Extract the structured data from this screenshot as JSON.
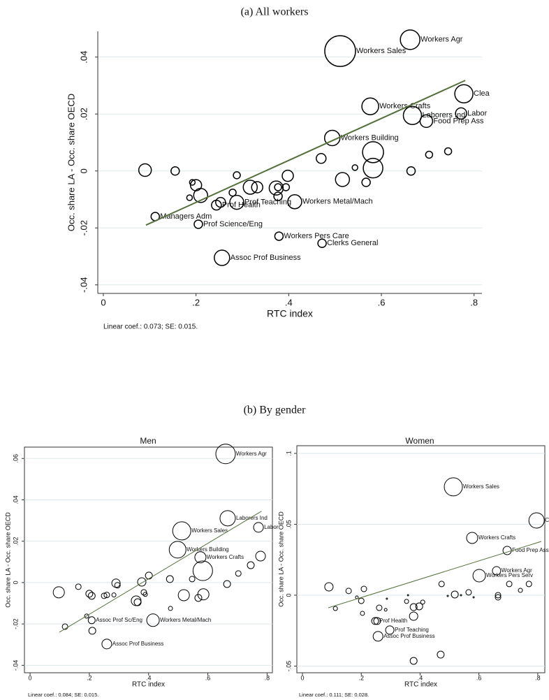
{
  "panel_a_caption": "(a) All workers",
  "panel_b_caption": "(b) By gender",
  "chart_data": [
    {
      "type": "scatter",
      "x_label": "RTC index",
      "y_label": "Occ. share LA - Occ. share OECD",
      "note": "Linear coef.: 0.073; SE: 0.015.",
      "grid": true,
      "color": "#000000",
      "fit_color": "#55703a",
      "xlim": [
        -0.012,
        0.817
      ],
      "ylim": [
        -0.043,
        0.049
      ],
      "xticks": [
        0,
        {
          "value": 0.2,
          "label": ".2"
        },
        {
          "value": 0.4,
          "label": ".4"
        },
        {
          "value": 0.6,
          "label": ".6"
        },
        {
          "value": 0.8,
          "label": ".8"
        }
      ],
      "yticks": [
        {
          "value": -0.04,
          "label": "-.04"
        },
        {
          "value": -0.02,
          "label": "-.02"
        },
        0,
        {
          "value": 0.02,
          "label": ".02"
        },
        {
          "value": 0.04,
          "label": ".04"
        }
      ],
      "x": [
        0.09,
        0.155,
        0.192,
        0.2,
        0.21,
        0.186,
        0.112,
        0.205,
        0.244,
        0.253,
        0.279,
        0.288,
        0.288,
        0.256,
        0.317,
        0.332,
        0.377,
        0.377,
        0.373,
        0.398,
        0.394,
        0.413,
        0.379,
        0.47,
        0.472,
        0.494,
        0.516,
        0.543,
        0.511,
        0.567,
        0.576,
        0.582,
        0.582,
        0.662,
        0.664,
        0.667,
        0.697,
        0.703,
        0.744,
        0.778,
        0.772
      ],
      "y": [
        0.0003,
        0,
        -0.004,
        -0.005,
        -0.0086,
        -0.0094,
        -0.016,
        -0.0187,
        -0.012,
        -0.011,
        -0.0076,
        -0.011,
        -0.0015,
        -0.0305,
        -0.0057,
        -0.0057,
        -0.0057,
        -0.0089,
        -0.006,
        -0.0017,
        -0.0057,
        -0.0108,
        -0.0229,
        0.0044,
        -0.0254,
        0.0116,
        -0.003,
        0.0012,
        0.0421,
        -0.004,
        0.0227,
        0.0066,
        0.001,
        0.0461,
        0,
        0.0195,
        0.0175,
        0.0057,
        0.0069,
        0.0271,
        0.0202
      ],
      "sizes": [
        9,
        6,
        4,
        8,
        10,
        4,
        6,
        6,
        7,
        7,
        5,
        10,
        5,
        11,
        10,
        8,
        5,
        6,
        10,
        8,
        5,
        10,
        6,
        7,
        6,
        11,
        10,
        4,
        22,
        6,
        12,
        15,
        14,
        14,
        6,
        13,
        9,
        5,
        5,
        13,
        8
      ],
      "labels": [
        null,
        null,
        null,
        null,
        null,
        null,
        "Managers Adm",
        "Prof Science/Eng",
        "Prof Health",
        null,
        null,
        "Prof Teaching",
        null,
        "Assoc Prof Business",
        null,
        null,
        null,
        null,
        null,
        null,
        null,
        "Workers Metal/Mach",
        "Workers Pers Care",
        null,
        "Clerks General",
        "Workers Building",
        null,
        null,
        "Workers Sales",
        null,
        "Workers Crafts",
        null,
        null,
        "Workers Agr",
        null,
        "Laborers Ind",
        "Food Prep Ass",
        null,
        null,
        "Clea",
        "Labor"
      ],
      "fit": {
        "x": [
          0.092,
          0.781
        ],
        "y": [
          -0.019,
          0.0318
        ]
      }
    },
    {
      "type": "scatter",
      "title": "Men",
      "x_label": "RTC index",
      "y_label": "Occ. share LA - Occ. share OECD",
      "note": "Linear coef.: 0.084; SE: 0.015.",
      "grid": true,
      "color": "#000000",
      "fit_color": "#55703a",
      "xlim": [
        -0.019,
        0.818
      ],
      "ylim": [
        -0.0436,
        0.0655
      ],
      "xticks": [
        0,
        {
          "value": 0.2,
          "label": ".2"
        },
        {
          "value": 0.4,
          "label": ".4"
        },
        {
          "value": 0.6,
          "label": ".6"
        },
        {
          "value": 0.8,
          "label": ".8"
        }
      ],
      "yticks": [
        {
          "value": -0.04,
          "label": "-.04"
        },
        {
          "value": -0.02,
          "label": "-.02"
        },
        0,
        {
          "value": 0.02,
          "label": ".02"
        },
        {
          "value": 0.04,
          "label": ".04"
        },
        {
          "value": 0.06,
          "label": ".06"
        }
      ],
      "x": [
        0.097,
        0.118,
        0.163,
        0.191,
        0.2,
        0.208,
        0.208,
        0.21,
        0.259,
        0.25,
        0.259,
        0.283,
        0.29,
        0.295,
        0.358,
        0.363,
        0.377,
        0.384,
        0.389,
        0.401,
        0.415,
        0.472,
        0.474,
        0.498,
        0.512,
        0.519,
        0.547,
        0.568,
        0.575,
        0.583,
        0.585,
        0.66,
        0.667,
        0.665,
        0.703,
        0.745,
        0.771,
        0.778
      ],
      "y": [
        -0.0047,
        -0.0213,
        -0.002,
        -0.0162,
        -0.0054,
        -0.0064,
        -0.0182,
        -0.0233,
        -0.0297,
        -0.0064,
        -0.006,
        -0.006,
        -0.0003,
        -0.0013,
        -0.0088,
        -0.0095,
        0.0003,
        -0.0047,
        -0.0057,
        0.0034,
        -0.0182,
        0.0017,
        -0.0125,
        0.0159,
        0.025,
        -0.0061,
        0.0017,
        -0.0074,
        0.0122,
        0.0057,
        -0.0057,
        0.0622,
        0.0311,
        -0.0007,
        0.0044,
        0.0084,
        0.0267,
        0.0128
      ],
      "sizes": [
        8,
        4,
        4,
        3,
        5,
        5,
        5,
        5,
        7,
        4,
        4,
        3,
        6,
        4,
        7,
        5,
        6,
        4,
        3,
        5,
        9,
        5,
        3,
        12,
        13,
        8,
        4,
        5,
        8,
        14,
        8,
        14,
        11,
        5,
        4,
        5,
        7,
        7
      ],
      "labels": [
        null,
        null,
        null,
        null,
        null,
        null,
        "Assoc Prof Sc/Eng",
        null,
        "Assoc Prof Business",
        null,
        null,
        null,
        null,
        null,
        null,
        null,
        null,
        null,
        null,
        null,
        "Workers Metal/Mach",
        null,
        null,
        "Workers Building",
        "Workers Sales",
        null,
        null,
        null,
        "Workers Crafts",
        null,
        null,
        "Workers Agr",
        "Laborers Ind",
        null,
        null,
        null,
        "Labor",
        null
      ],
      "fit": {
        "x": [
          0.099,
          0.781
        ],
        "y": [
          -0.024,
          0.0345
        ]
      }
    },
    {
      "type": "scatter",
      "title": "Women",
      "x_label": "RTC index",
      "y_label": "Occ. share LA - Occ. share OECD",
      "note": "Linear coef.: 0.111; SE: 0.028.",
      "grid": true,
      "color": "#000000",
      "fit_color": "#55703a",
      "xlim": [
        -0.019,
        0.824
      ],
      "ylim": [
        -0.0547,
        0.1054
      ],
      "xticks": [
        0,
        {
          "value": 0.2,
          "label": ".2"
        },
        {
          "value": 0.4,
          "label": ".4"
        },
        {
          "value": 0.6,
          "label": ".6"
        },
        {
          "value": 0.8,
          "label": ".8"
        }
      ],
      "yticks": [
        {
          "value": -0.05,
          "label": "-.05"
        },
        0,
        {
          "value": 0.05,
          "label": ".05"
        },
        {
          "value": 0.1,
          "label": ".1"
        }
      ],
      "x": [
        0.09,
        0.112,
        0.157,
        0.185,
        0.2,
        0.204,
        0.209,
        0.247,
        0.254,
        0.261,
        0.257,
        0.283,
        0.287,
        0.297,
        0.354,
        0.359,
        0.378,
        0.378,
        0.378,
        0.397,
        0.409,
        0.473,
        0.47,
        0.494,
        0.513,
        0.518,
        0.539,
        0.565,
        0.577,
        0.582,
        0.601,
        0.66,
        0.665,
        0.665,
        0.696,
        0.703,
        0.741,
        0.77,
        0.796
      ],
      "y": [
        0.0059,
        -0.0094,
        0.003,
        -0.0015,
        -0.004,
        -0.0128,
        0.0044,
        -0.0182,
        -0.0182,
        -0.0089,
        -0.029,
        -0.0103,
        -0.0025,
        -0.0246,
        -0.0044,
        0,
        -0.0084,
        -0.0148,
        -0.0463,
        -0.0079,
        -0.0049,
        0.0079,
        -0.0419,
        -0.0005,
        0.0764,
        0.0005,
        0,
        0.002,
        0.0404,
        -0.0015,
        0.0138,
        0.0172,
        0,
        -0.0015,
        0.0315,
        0.0079,
        0.0034,
        0.0079,
        0.0527
      ],
      "sizes": [
        6,
        3,
        4,
        2,
        4,
        3,
        4,
        5,
        5,
        4,
        7,
        2,
        1,
        6,
        3,
        1,
        5,
        6,
        5,
        5,
        3,
        4,
        5,
        1,
        13,
        5,
        1,
        4,
        8,
        1,
        9,
        6,
        4,
        4,
        6,
        4,
        3,
        4,
        11
      ],
      "labels": [
        null,
        null,
        null,
        null,
        null,
        null,
        null,
        "Prof Health",
        null,
        null,
        "Assoc Prof Business",
        null,
        null,
        "Prof Teaching",
        null,
        null,
        null,
        null,
        null,
        null,
        null,
        null,
        null,
        null,
        "Workers Sales",
        null,
        null,
        null,
        "Workers Crafts",
        null,
        "Workers Pers Serv",
        "Workers Agr",
        null,
        null,
        "Food Prep Assis",
        null,
        null,
        null,
        "Clean"
      ],
      "fit": {
        "x": [
          0.088,
          0.812
        ],
        "y": [
          -0.0089,
          0.0379
        ]
      }
    }
  ]
}
